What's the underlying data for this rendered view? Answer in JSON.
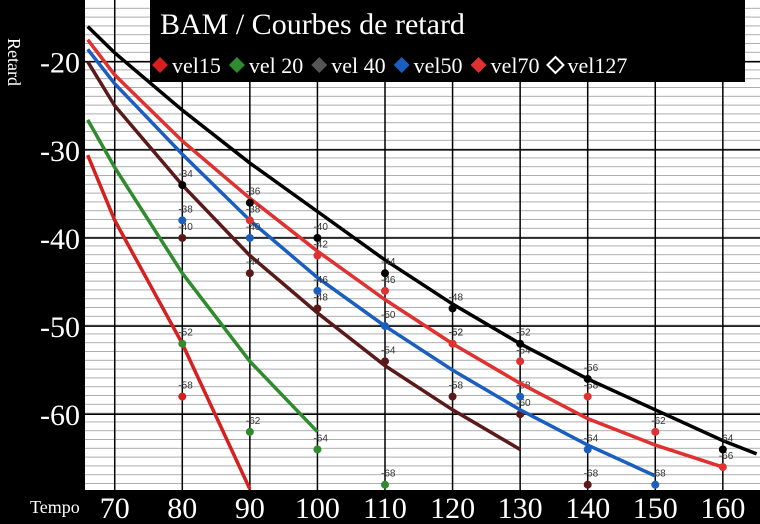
{
  "chart_data": {
    "type": "line",
    "title": "BAM / Courbes de retard",
    "x_label": "Tempo",
    "y_label": "Retard",
    "xlim": [
      65.6,
      165.5
    ],
    "xticks": [
      70,
      80,
      90,
      100,
      110,
      120,
      130,
      140,
      150,
      160
    ],
    "ylim": [
      -68.6,
      -13
    ],
    "yticks": [
      -20,
      -30,
      -40,
      -50,
      -60
    ],
    "grid": true,
    "x": [
      66,
      70,
      80,
      90,
      100,
      110,
      120,
      130,
      140,
      150,
      160,
      165
    ],
    "series": [
      {
        "name": "vel15",
        "color": "#d62020",
        "values": [
          -30.6,
          -38,
          -52,
          -68.5,
          null,
          null,
          null,
          null,
          null,
          null,
          null,
          null
        ],
        "marker_x": [
          80
        ],
        "marker_values": [
          -58
        ]
      },
      {
        "name": "vel 20",
        "color": "#2e8b2e",
        "values": [
          -26.6,
          -32,
          -44,
          -54,
          -62,
          null,
          null,
          null,
          null,
          null,
          null,
          null
        ],
        "marker_x": [
          80,
          90,
          100,
          110
        ],
        "marker_values": [
          -52,
          -62,
          -64,
          -68
        ]
      },
      {
        "name": "vel 40",
        "color": "#5a1a1a",
        "values": [
          -20,
          -25,
          -34,
          -42,
          -48.5,
          -54.5,
          -59.5,
          -64,
          null,
          null,
          null,
          null
        ],
        "marker_x": [
          80,
          90,
          100,
          110,
          120,
          130,
          140
        ],
        "marker_values": [
          -40,
          -44,
          -48,
          -54,
          -58,
          -60,
          -68
        ]
      },
      {
        "name": "vel50",
        "color": "#1a5fc0",
        "values": [
          -18.6,
          -22.5,
          -30.5,
          -38,
          -44.5,
          -50,
          -55,
          -59.5,
          -63.5,
          -67,
          null,
          null
        ],
        "marker_x": [
          80,
          90,
          100,
          110,
          120,
          130,
          140,
          150
        ],
        "marker_values": [
          -38,
          -40,
          -46,
          -50,
          -52,
          -58,
          -64,
          -68
        ]
      },
      {
        "name": "vel70",
        "color": "#e03030",
        "values": [
          -17.5,
          -21.5,
          -29,
          -35.5,
          -41.5,
          -47,
          -52,
          -56.5,
          -60.5,
          -63.5,
          -66,
          null
        ],
        "marker_x": [
          90,
          100,
          110,
          120,
          130,
          140,
          150,
          160
        ],
        "marker_values": [
          -38,
          -42,
          -46,
          -52,
          -54,
          -58,
          -62,
          -66
        ]
      },
      {
        "name": "vel127",
        "color": "#000000",
        "legend_hollow": true,
        "values": [
          -16,
          -19,
          -25.5,
          -31.5,
          -37,
          -42.5,
          -47.5,
          -52,
          -56,
          -59.5,
          -63,
          -64.5
        ],
        "marker_x": [
          80,
          90,
          100,
          110,
          120,
          130,
          140,
          160
        ],
        "marker_values": [
          -34,
          -36,
          -40,
          -44,
          -48,
          -52,
          -56,
          -64
        ]
      }
    ]
  }
}
